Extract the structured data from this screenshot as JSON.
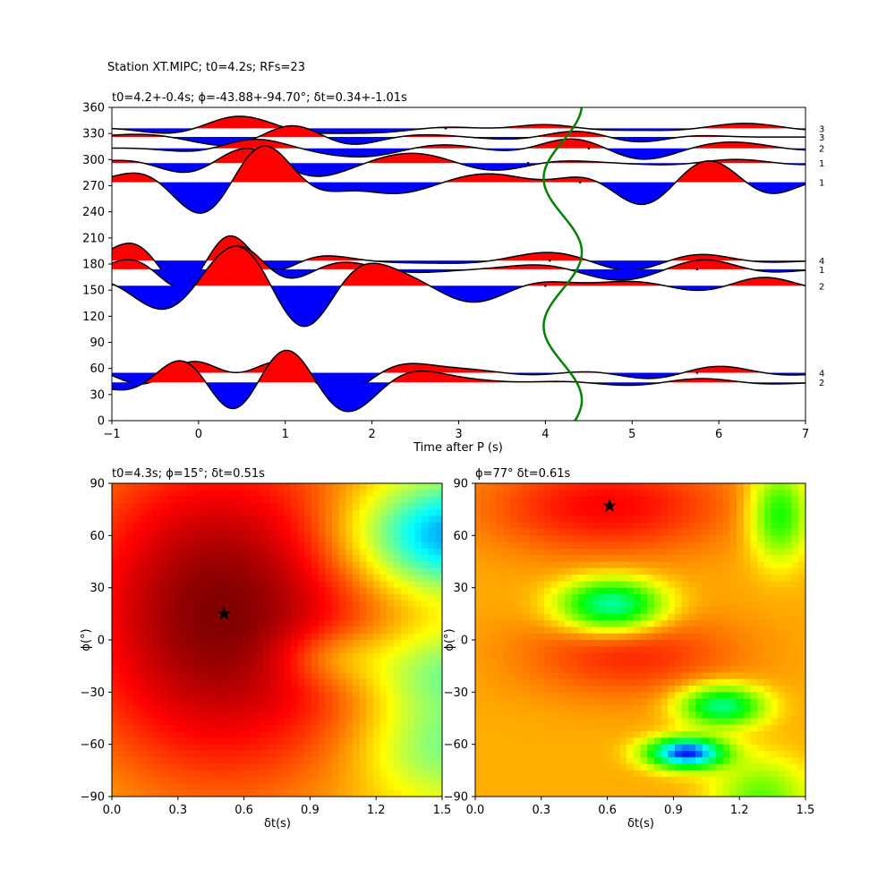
{
  "figure_title": "Station XT.MIPC; t0=4.2s; RFs=23",
  "chart_data": [
    {
      "type": "line",
      "panel": "receiver-function-traces",
      "title": "t0=4.2+-0.4s; ϕ=-43.88+-94.70°; δt=0.34+-1.01s",
      "xlabel": "Time after P (s)",
      "ylabel": "",
      "xlim": [
        -1,
        7
      ],
      "ylim": [
        0,
        360
      ],
      "xticks": [
        "−1",
        "0",
        "1",
        "2",
        "3",
        "4",
        "5",
        "6",
        "7"
      ],
      "yticks": [
        "0",
        "30",
        "60",
        "90",
        "120",
        "150",
        "180",
        "210",
        "240",
        "270",
        "300",
        "330",
        "360"
      ],
      "positive_fill": "#ff0000",
      "negative_fill": "#0000ff",
      "t0_curve_color": "#008000",
      "t0_curve": {
        "center": 4.2,
        "amplitude": 0.22,
        "period_deg": 170,
        "phase_deg": 40
      },
      "traces": [
        {
          "baseline": 336,
          "count": "3",
          "amp": 14,
          "comps": [
            [
              0.9,
              0.45,
              1.0
            ],
            [
              -0.4,
              2.0,
              1.3
            ],
            [
              0.3,
              4.0,
              0.9
            ],
            [
              0.4,
              6.3,
              1.1
            ]
          ]
        },
        {
          "baseline": 326,
          "count": "3",
          "amp": 10,
          "comps": [
            [
              -0.7,
              0.2,
              1.1
            ],
            [
              0.8,
              1.1,
              0.8
            ],
            [
              -0.5,
              1.8,
              1.0
            ],
            [
              0.5,
              4.4,
              1.0
            ],
            [
              -0.4,
              5.0,
              0.9
            ]
          ]
        },
        {
          "baseline": 313,
          "count": "2",
          "amp": 12,
          "comps": [
            [
              0.6,
              0.6,
              0.9
            ],
            [
              -0.8,
              1.9,
              1.2
            ],
            [
              0.6,
              4.3,
              1.0
            ],
            [
              -0.7,
              5.1,
              1.0
            ],
            [
              0.4,
              6.3,
              1.0
            ]
          ]
        },
        {
          "baseline": 296,
          "count": "1",
          "amp": 14,
          "comps": [
            [
              -0.5,
              0.0,
              1.0
            ],
            [
              0.9,
              0.5,
              0.9
            ],
            [
              -0.6,
              1.4,
              1.1
            ],
            [
              0.4,
              2.5,
              1.2
            ],
            [
              -0.4,
              3.4,
              1.0
            ],
            [
              0.3,
              6.2,
              1.0
            ]
          ]
        },
        {
          "baseline": 274,
          "count": "1",
          "amp": 22,
          "comps": [
            [
              -1.0,
              0.0,
              0.9
            ],
            [
              1.4,
              0.75,
              0.85
            ],
            [
              -0.6,
              2.2,
              1.1
            ],
            [
              0.3,
              3.5,
              1.0
            ],
            [
              -0.9,
              5.1,
              0.9
            ],
            [
              0.6,
              5.9,
              0.9
            ],
            [
              -0.3,
              6.6,
              0.8
            ]
          ]
        },
        {
          "baseline": 184,
          "count": "4",
          "amp": 16,
          "comps": [
            [
              0.8,
              -0.8,
              0.9
            ],
            [
              -0.9,
              -0.2,
              0.7
            ],
            [
              1.6,
              0.35,
              0.7
            ],
            [
              0.3,
              1.4,
              1.1
            ],
            [
              0.4,
              4.0,
              1.2
            ],
            [
              -0.4,
              5.0,
              1.1
            ],
            [
              0.3,
              5.7,
              1.0
            ]
          ]
        },
        {
          "baseline": 174,
          "count": "1",
          "amp": 16,
          "comps": [
            [
              0.4,
              -0.8,
              0.7
            ],
            [
              -0.6,
              -0.1,
              0.8
            ],
            [
              1.6,
              0.45,
              0.8
            ],
            [
              0.5,
              1.6,
              1.1
            ],
            [
              -0.7,
              4.8,
              1.1
            ],
            [
              0.4,
              5.9,
              0.9
            ]
          ]
        },
        {
          "baseline": 155,
          "count": "2",
          "amp": 18,
          "comps": [
            [
              -0.8,
              -0.5,
              0.9
            ],
            [
              1.7,
              0.4,
              0.9
            ],
            [
              -1.6,
              1.25,
              0.8
            ],
            [
              0.6,
              2.1,
              1.1
            ],
            [
              -0.8,
              3.2,
              1.0
            ],
            [
              0.3,
              5.0,
              1.3
            ],
            [
              0.6,
              6.5,
              1.0
            ]
          ]
        },
        {
          "baseline": 55,
          "count": "4",
          "amp": 14,
          "comps": [
            [
              -0.6,
              -0.5,
              0.9
            ],
            [
              1.2,
              -0.1,
              0.8
            ],
            [
              0.5,
              0.9,
              1.0
            ],
            [
              -1.4,
              1.6,
              0.9
            ],
            [
              0.4,
              2.6,
              1.0
            ],
            [
              0.4,
              3.2,
              1.0
            ],
            [
              -0.3,
              5.2,
              1.0
            ],
            [
              0.4,
              6.0,
              1.0
            ]
          ]
        },
        {
          "baseline": 44,
          "count": "2",
          "amp": 14,
          "comps": [
            [
              1.4,
              -0.1,
              0.9
            ],
            [
              -1.6,
              0.4,
              0.8
            ],
            [
              1.7,
              1.0,
              0.9
            ],
            [
              -1.5,
              1.7,
              1.0
            ],
            [
              0.4,
              2.5,
              1.1
            ],
            [
              0.5,
              3.2,
              1.0
            ],
            [
              0.3,
              4.0,
              1.1
            ],
            [
              0.3,
              5.8,
              1.0
            ]
          ]
        }
      ],
      "markers": [
        [
          2.85,
          336
        ],
        [
          4.5,
          313
        ],
        [
          3.8,
          296
        ],
        [
          4.4,
          274
        ],
        [
          4.05,
          184
        ],
        [
          5.75,
          174
        ],
        [
          4.0,
          155
        ],
        [
          5.75,
          55
        ]
      ]
    },
    {
      "type": "heatmap",
      "panel": "grid-search-left",
      "title": "t0=4.3s; ϕ=15°; δt=0.51s",
      "xlabel": "δt(s)",
      "ylabel": "ϕ(°)",
      "xlim": [
        0.0,
        1.5
      ],
      "ylim": [
        -90,
        90
      ],
      "xticks": [
        "0.0",
        "0.3",
        "0.6",
        "0.9",
        "1.2",
        "1.5"
      ],
      "yticks": [
        "−90",
        "−60",
        "−30",
        "0",
        "30",
        "60",
        "90"
      ],
      "colormap": "jet",
      "best": {
        "dt": 0.51,
        "phi": 15
      },
      "field": [
        {
          "w": 1.0,
          "dt": 0.5,
          "phi": 15,
          "sdt": 0.55,
          "sphi": 75
        },
        {
          "w": -1.15,
          "dt": 1.52,
          "phi": 60,
          "sdt": 0.3,
          "sphi": 22
        },
        {
          "w": -0.55,
          "dt": 1.5,
          "phi": -18,
          "sdt": 0.25,
          "sphi": 18
        },
        {
          "w": -0.5,
          "dt": 1.5,
          "phi": -62,
          "sdt": 0.25,
          "sphi": 20
        },
        {
          "w": -0.3,
          "dt": 1.0,
          "phi": -10,
          "sdt": 0.18,
          "sphi": 12
        }
      ]
    },
    {
      "type": "heatmap",
      "panel": "grid-search-right",
      "title": "ϕ=77° δt=0.61s",
      "xlabel": "δt(s)",
      "ylabel": "ϕ(°)",
      "xlim": [
        0.0,
        1.5
      ],
      "ylim": [
        -90,
        90
      ],
      "xticks": [
        "0.0",
        "0.3",
        "0.6",
        "0.9",
        "1.2",
        "1.5"
      ],
      "yticks": [
        "−90",
        "−60",
        "−30",
        "0",
        "30",
        "60",
        "90"
      ],
      "colormap": "hsv",
      "best": {
        "dt": 0.61,
        "phi": 77
      },
      "field": [
        {
          "w": 0.18,
          "dt": 0.6,
          "phi": 77,
          "sdt": 0.4,
          "sphi": 20
        },
        {
          "w": 0.14,
          "dt": 0.7,
          "phi": -8,
          "sdt": 0.35,
          "sphi": 18
        },
        {
          "w": -0.55,
          "dt": 0.62,
          "phi": 20,
          "sdt": 0.16,
          "sphi": 10,
          "tilt": -0.6
        },
        {
          "w": -0.5,
          "dt": 1.12,
          "phi": -38,
          "sdt": 0.13,
          "sphi": 8
        },
        {
          "w": -0.85,
          "dt": 0.96,
          "phi": -65,
          "sdt": 0.12,
          "sphi": 6
        },
        {
          "w": -0.35,
          "dt": 1.38,
          "phi": 72,
          "sdt": 0.09,
          "sphi": 18
        },
        {
          "w": -0.25,
          "dt": 1.3,
          "phi": -90,
          "sdt": 0.15,
          "sphi": 15
        }
      ]
    }
  ]
}
